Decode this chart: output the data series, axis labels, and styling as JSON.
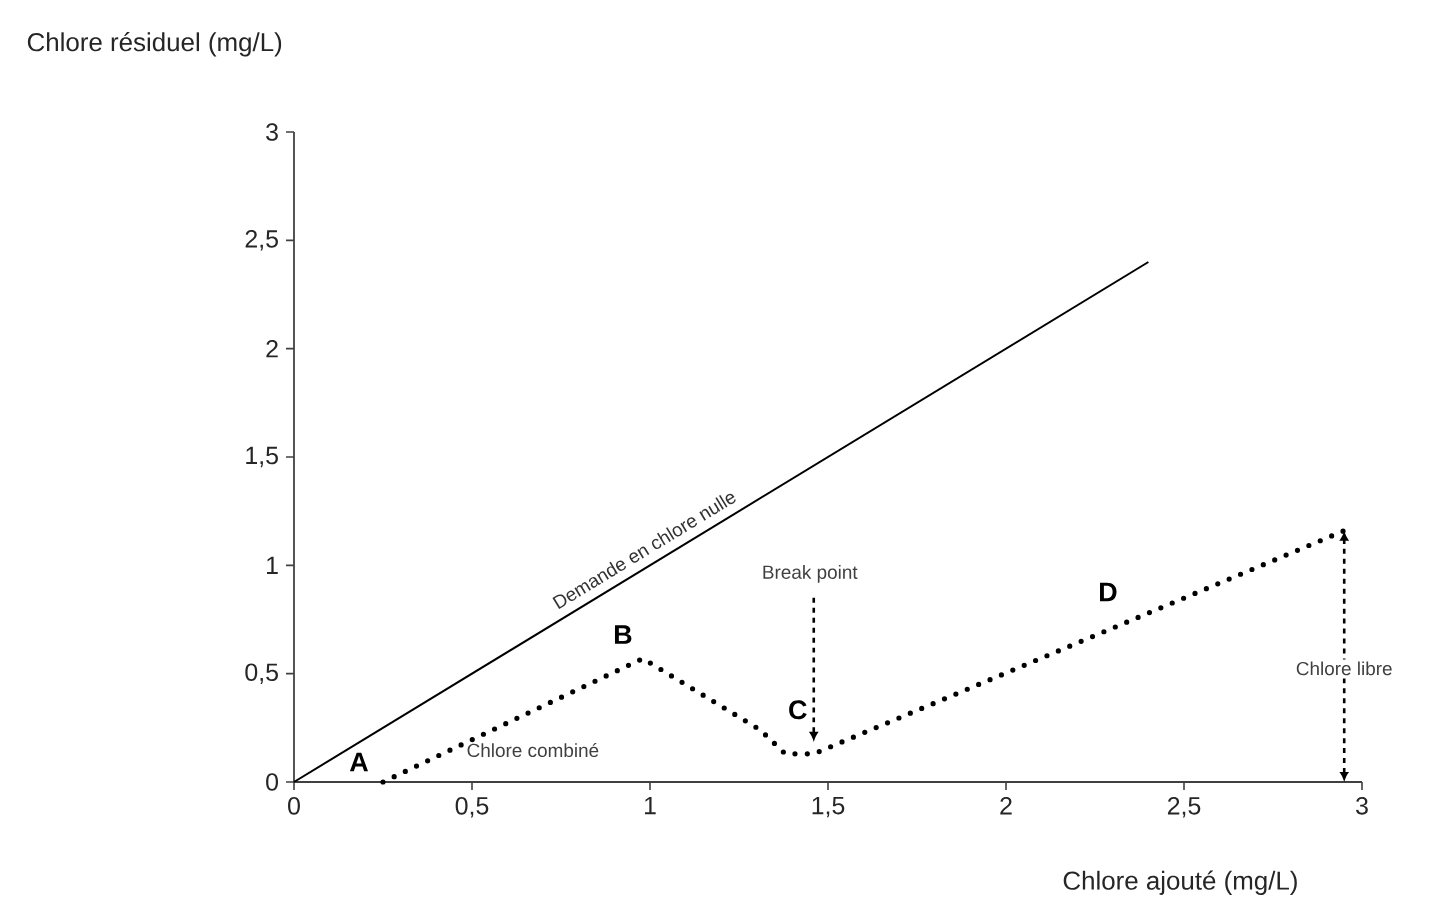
{
  "chart_data": {
    "type": "line",
    "xlabel": "Chlore ajouté (mg/L)",
    "ylabel": "Chlore résiduel (mg/L)",
    "xlim": [
      0,
      3
    ],
    "ylim": [
      0,
      3
    ],
    "xticks": [
      0,
      {
        "value": 0.5,
        "label": "0,5"
      },
      1,
      {
        "value": 1.5,
        "label": "1,5"
      },
      2,
      {
        "value": 2.5,
        "label": "2,5"
      },
      3
    ],
    "yticks": [
      0,
      {
        "value": 0.5,
        "label": "0,5"
      },
      1,
      {
        "value": 1.5,
        "label": "1,5"
      },
      2,
      {
        "value": 2.5,
        "label": "2,5"
      },
      3
    ],
    "grid": false,
    "legend": false,
    "marker": "none",
    "series": [
      {
        "name": "Demande en chlore nulle",
        "color": "#000000",
        "line_style": "solid",
        "x": [
          0,
          2.4
        ],
        "values": [
          0,
          2.4
        ]
      },
      {
        "color": "#000000",
        "line_style": "dotted",
        "x": [
          0.25,
          0.98,
          1.31,
          1.38,
          1.46,
          2.95
        ],
        "values": [
          0,
          0.57,
          0.24,
          0.13,
          0.13,
          1.16
        ]
      }
    ],
    "annotations": [
      {
        "text": "A",
        "x": 0.25,
        "y": 0
      },
      {
        "text": "B",
        "x": 0.98,
        "y": 0.57
      },
      {
        "text": "C",
        "x": 1.46,
        "y": 0.13
      },
      {
        "text": "D",
        "x": 2.32,
        "y": 0.72
      },
      "Chlore combiné",
      "Break point",
      "Chlore libre"
    ]
  }
}
